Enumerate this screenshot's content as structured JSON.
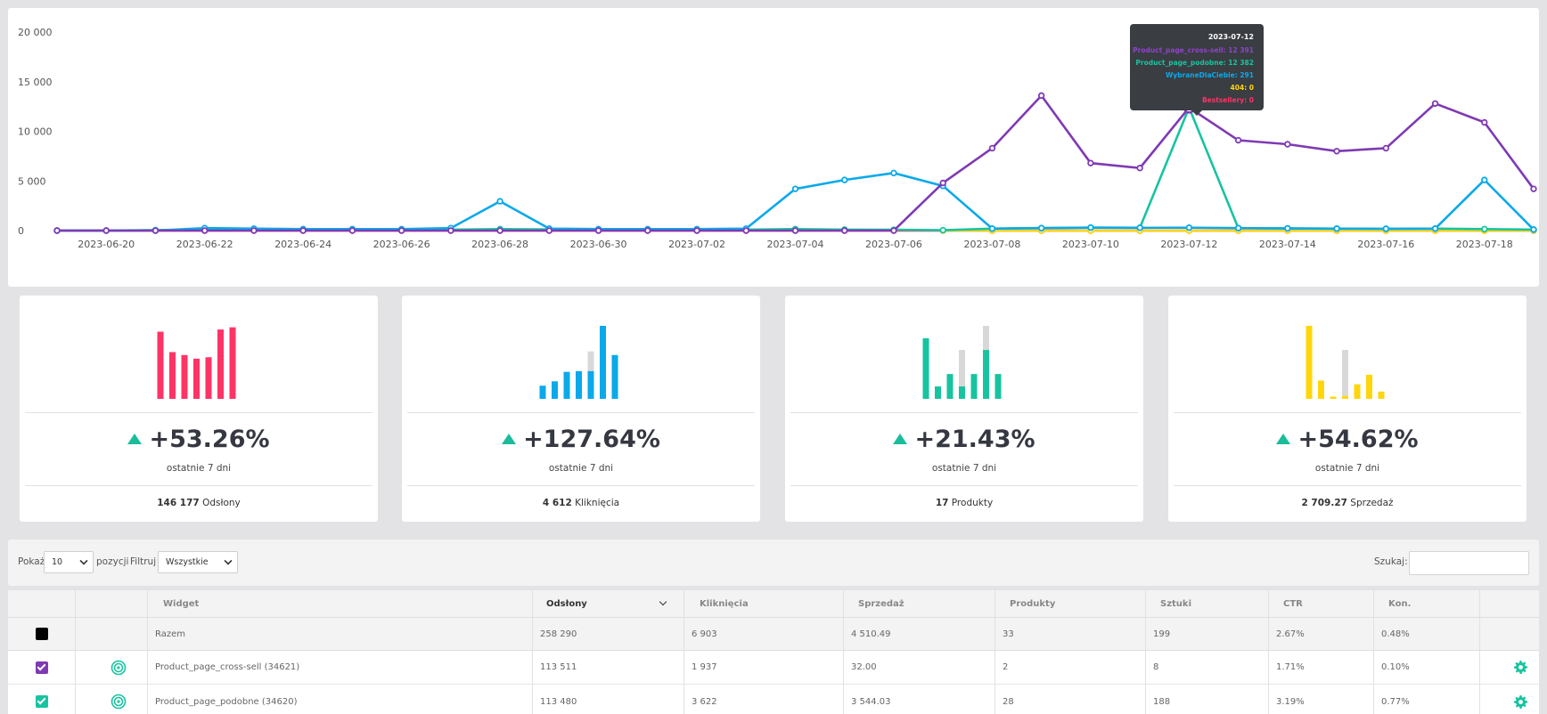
{
  "chart_data": {
    "type": "line",
    "x": [
      "2023-06-19",
      "2023-06-20",
      "2023-06-21",
      "2023-06-22",
      "2023-06-23",
      "2023-06-24",
      "2023-06-25",
      "2023-06-26",
      "2023-06-27",
      "2023-06-28",
      "2023-06-29",
      "2023-06-30",
      "2023-07-01",
      "2023-07-02",
      "2023-07-03",
      "2023-07-04",
      "2023-07-05",
      "2023-07-06",
      "2023-07-07",
      "2023-07-08",
      "2023-07-09",
      "2023-07-10",
      "2023-07-11",
      "2023-07-12",
      "2023-07-13",
      "2023-07-14",
      "2023-07-15",
      "2023-07-16",
      "2023-07-17",
      "2023-07-18",
      "2023-07-19"
    ],
    "x_tick_labels": [
      "2023-06-20",
      "2023-06-22",
      "2023-06-24",
      "2023-06-26",
      "2023-06-28",
      "2023-06-30",
      "2023-07-02",
      "2023-07-04",
      "2023-07-06",
      "2023-07-08",
      "2023-07-10",
      "2023-07-12",
      "2023-07-14",
      "2023-07-16",
      "2023-07-18"
    ],
    "y_ticks": [
      0,
      5000,
      10000,
      15000,
      20000
    ],
    "y_tick_labels": [
      "0",
      "5 000",
      "10 000",
      "15 000",
      "20 000"
    ],
    "ylim": [
      0,
      20000
    ],
    "grid": false,
    "series": [
      {
        "name": "Bestsellery",
        "color": "#ff3366",
        "values": [
          0,
          0,
          0,
          0,
          0,
          0,
          0,
          0,
          0,
          0,
          0,
          0,
          0,
          0,
          0,
          0,
          0,
          0,
          0,
          0,
          0,
          0,
          0,
          0,
          0,
          0,
          0,
          0,
          0,
          0,
          0
        ]
      },
      {
        "name": "404",
        "color": "#ffd60a",
        "values": [
          0,
          0,
          0,
          0,
          0,
          0,
          0,
          0,
          0,
          0,
          0,
          0,
          0,
          0,
          0,
          0,
          0,
          0,
          0,
          0,
          0,
          0,
          0,
          0,
          0,
          0,
          0,
          0,
          0,
          0,
          0
        ]
      },
      {
        "name": "Product_page_podobne",
        "color": "#17c49f",
        "values": [
          0,
          0,
          50,
          100,
          80,
          60,
          70,
          80,
          100,
          150,
          120,
          100,
          90,
          80,
          100,
          150,
          100,
          80,
          40,
          200,
          250,
          300,
          280,
          12382,
          250,
          220,
          200,
          180,
          200,
          150,
          100
        ]
      },
      {
        "name": "WybraneDlaCiebie",
        "color": "#0aa9ea",
        "values": [
          0,
          0,
          0,
          250,
          200,
          150,
          150,
          150,
          250,
          2950,
          200,
          150,
          150,
          150,
          200,
          4200,
          5100,
          5800,
          4500,
          200,
          250,
          300,
          280,
          291,
          250,
          220,
          200,
          180,
          200,
          5100,
          100
        ]
      },
      {
        "name": "Product_page_cross-sell",
        "color": "#7f3ab3",
        "values": [
          0,
          0,
          0,
          0,
          0,
          0,
          0,
          0,
          0,
          0,
          0,
          0,
          0,
          0,
          0,
          0,
          0,
          0,
          4800,
          8300,
          13600,
          6800,
          6300,
          12391,
          9100,
          8700,
          8000,
          8300,
          12800,
          10900,
          4200
        ]
      }
    ],
    "highlight_index": 23
  },
  "tooltip": {
    "date": "2023-07-12",
    "lines": [
      {
        "text": "Product_page_cross-sell: 12 391",
        "color": "#8e44c7"
      },
      {
        "text": "Product_page_podobne: 12 382",
        "color": "#17c49f"
      },
      {
        "text": "WybraneDlaCiebie: 291",
        "color": "#0aa9ea"
      },
      {
        "text": "404: 0",
        "color": "#ffd60a"
      },
      {
        "text": "Bestsellery: 0",
        "color": "#ff3366"
      }
    ]
  },
  "cards": [
    {
      "color": "#ff3366",
      "bars": [
        0.92,
        0.64,
        0.6,
        0.55,
        0.57,
        0.95,
        0.98
      ],
      "ghost": [
        0,
        0,
        0,
        0,
        0.52,
        0,
        0
      ],
      "ghost_extra": [
        0,
        0,
        0,
        0,
        0,
        1.0,
        0
      ],
      "percent": "+53.26%",
      "period": "ostatnie 7 dni",
      "total_value": "146 177",
      "total_label": "Odsłony"
    },
    {
      "color": "#0aa9ea",
      "bars": [
        0.18,
        0.24,
        0.37,
        0.38,
        0.38,
        1.0,
        0.6
      ],
      "ghost": [
        0,
        0,
        0,
        0,
        0.65,
        0,
        0
      ],
      "percent": "+127.64%",
      "period": "ostatnie 7 dni",
      "total_value": "4 612",
      "total_label": "Kliknięcia"
    },
    {
      "color": "#17c49f",
      "bars": [
        0.83,
        0.17,
        0.34,
        0.17,
        0.34,
        0.67,
        0.34
      ],
      "ghost": [
        0,
        0,
        0,
        0.67,
        0,
        1.0,
        0
      ],
      "percent": "+21.43%",
      "period": "ostatnie 7 dni",
      "total_value": "17",
      "total_label": "Produkty"
    },
    {
      "color": "#ffd60a",
      "bars": [
        1.0,
        0.25,
        0.03,
        0.04,
        0.2,
        0.33,
        0.1
      ],
      "ghost": [
        0,
        0,
        0,
        0.67,
        0,
        0,
        0
      ],
      "percent": "+54.62%",
      "period": "ostatnie 7 dni",
      "total_value": "2 709.27",
      "total_label": "Sprzedaż"
    }
  ],
  "filters": {
    "show_label": "Pokaż",
    "show_value": "10",
    "positions_label": "pozycji",
    "filter_label": "Filtruj",
    "filter_value": "Wszystkie",
    "search_label": "Szukaj:",
    "search_value": ""
  },
  "table": {
    "headers": {
      "widget": "Widget",
      "odslony": "Odsłony",
      "klikniecia": "Kliknięcia",
      "sprzedaz": "Sprzedaż",
      "produkty": "Produkty",
      "sztuki": "Sztuki",
      "ctr": "CTR",
      "kon": "Kon."
    },
    "summary": {
      "widget": "Razem",
      "odslony": "258 290",
      "klikniecia": "6 903",
      "sprzedaz": "4 510.49",
      "produkty": "33",
      "sztuki": "199",
      "ctr": "2.67%",
      "kon": "0.48%"
    },
    "rows": [
      {
        "widget": "Product_page_cross-sell (34621)",
        "odslony": "113 511",
        "klikniecia": "1 937",
        "sprzedaz": "32.00",
        "produkty": "2",
        "sztuki": "8",
        "ctr": "1.71%",
        "kon": "0.10%"
      },
      {
        "widget": "Product_page_podobne (34620)",
        "odslony": "113 480",
        "klikniecia": "3 622",
        "sprzedaz": "3 544.03",
        "produkty": "28",
        "sztuki": "188",
        "ctr": "3.19%",
        "kon": "0.77%"
      }
    ]
  },
  "colors": {
    "accent_green": "#17c49f",
    "purple": "#7f3ab3"
  }
}
